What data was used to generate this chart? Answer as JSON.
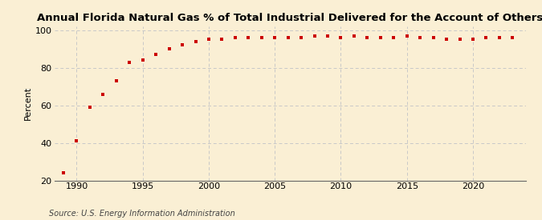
{
  "title": "Annual Florida Natural Gas % of Total Industrial Delivered for the Account of Others",
  "ylabel": "Percent",
  "source": "Source: U.S. Energy Information Administration",
  "background_color": "#faefd4",
  "marker_color": "#cc0000",
  "grid_color": "#c8c8c8",
  "xlim": [
    1988.3,
    2024.0
  ],
  "ylim": [
    20,
    102
  ],
  "yticks": [
    20,
    40,
    60,
    80,
    100
  ],
  "xticks": [
    1990,
    1995,
    2000,
    2005,
    2010,
    2015,
    2020
  ],
  "years": [
    1989,
    1990,
    1991,
    1992,
    1993,
    1994,
    1995,
    1996,
    1997,
    1998,
    1999,
    2000,
    2001,
    2002,
    2003,
    2004,
    2005,
    2006,
    2007,
    2008,
    2009,
    2010,
    2011,
    2012,
    2013,
    2014,
    2015,
    2016,
    2017,
    2018,
    2019,
    2020,
    2021,
    2022,
    2023
  ],
  "values": [
    24,
    41,
    59,
    66,
    73,
    83,
    84,
    87,
    90,
    92,
    94,
    95,
    95,
    96,
    96,
    96,
    96,
    96,
    96,
    97,
    97,
    96,
    97,
    96,
    96,
    96,
    97,
    96,
    96,
    95,
    95,
    95,
    96,
    96,
    96
  ],
  "title_fontsize": 9.5,
  "ylabel_fontsize": 8,
  "tick_fontsize": 8,
  "source_fontsize": 7
}
